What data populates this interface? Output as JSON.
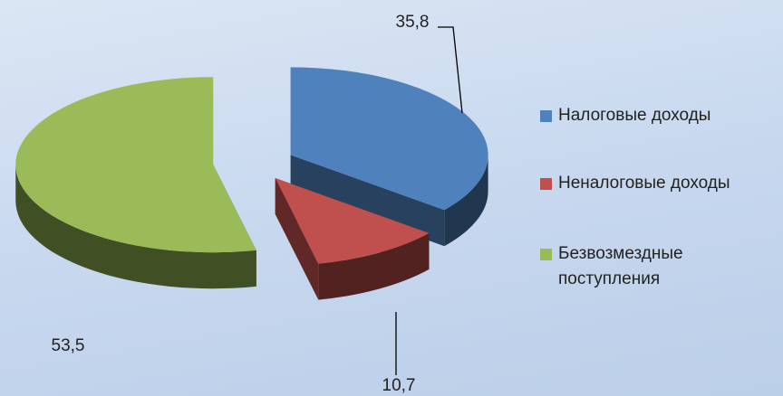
{
  "chart_data": {
    "type": "pie",
    "categories": [
      "Налоговые доходы",
      "Неналоговые доходы",
      "Безвозмездные поступления"
    ],
    "values": [
      35.8,
      10.7,
      53.5
    ],
    "value_labels": [
      "35,8",
      "10,7",
      "53,5"
    ],
    "colors": [
      "#4f81bd",
      "#c0504d",
      "#9bbb59"
    ],
    "legend": "right"
  }
}
